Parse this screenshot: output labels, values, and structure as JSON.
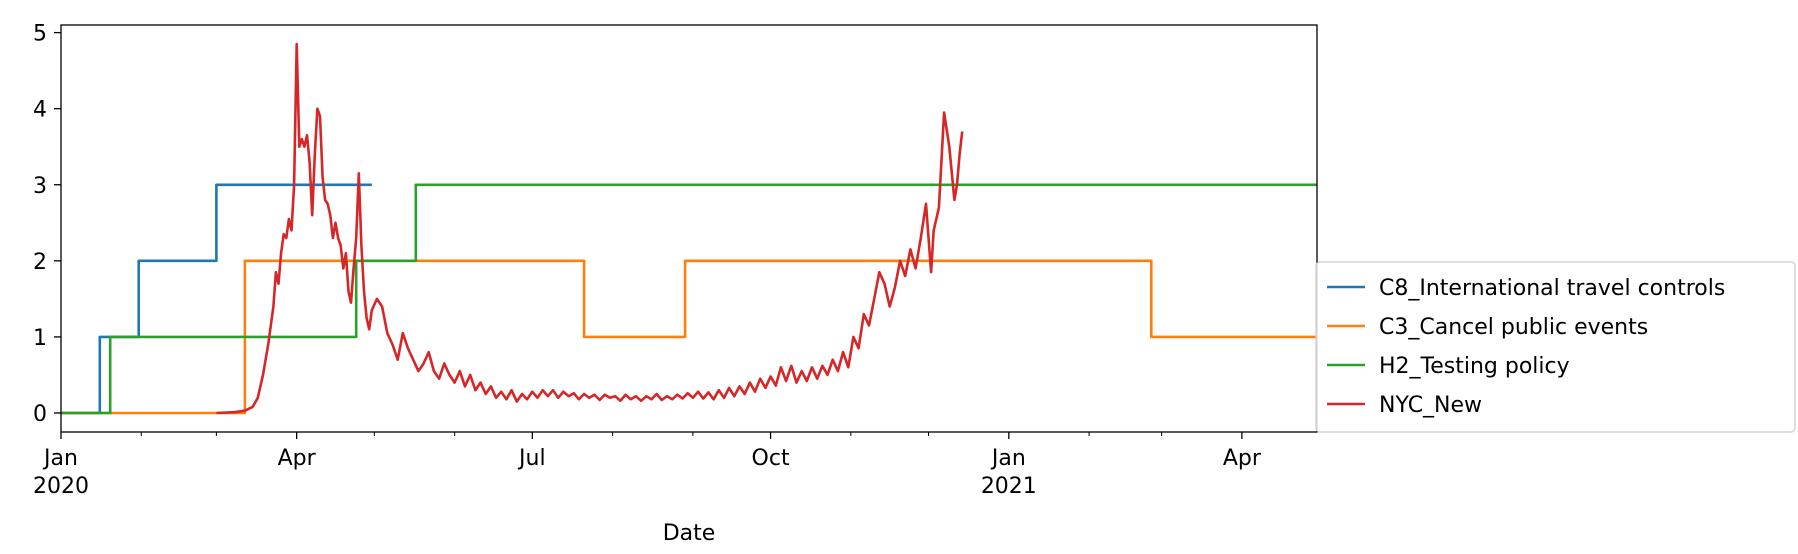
{
  "chart_data": {
    "type": "line",
    "xlabel": "Date",
    "ylabel": "",
    "xlim": [
      "2020-01-01",
      "2021-04-30"
    ],
    "ylim": [
      -0.25,
      5.1
    ],
    "y_ticks": [
      0,
      1,
      2,
      3,
      4,
      5
    ],
    "x_ticks": [
      {
        "date": "2020-01-01",
        "label": "Jan",
        "sublabel": "2020"
      },
      {
        "date": "2020-04-01",
        "label": "Apr",
        "sublabel": ""
      },
      {
        "date": "2020-07-01",
        "label": "Jul",
        "sublabel": ""
      },
      {
        "date": "2020-10-01",
        "label": "Oct",
        "sublabel": ""
      },
      {
        "date": "2021-01-01",
        "label": "Jan",
        "sublabel": "2021"
      },
      {
        "date": "2021-04-01",
        "label": "Apr",
        "sublabel": ""
      }
    ],
    "minor_ticks": [
      "2020-02-01",
      "2020-03-01",
      "2020-05-01",
      "2020-06-01",
      "2020-08-01",
      "2020-09-01",
      "2020-11-01",
      "2020-12-01",
      "2021-02-01",
      "2021-03-01"
    ],
    "grid": false,
    "legend_position": "right",
    "series": [
      {
        "name": "C8_International travel controls",
        "color": "#1f77b4",
        "step": true,
        "points": [
          [
            "2020-01-01",
            0
          ],
          [
            "2020-01-16",
            1
          ],
          [
            "2020-01-31",
            2
          ],
          [
            "2020-03-01",
            3
          ],
          [
            "2020-04-30",
            3
          ]
        ]
      },
      {
        "name": "C3_Cancel public events",
        "color": "#ff7f0e",
        "step": true,
        "points": [
          [
            "2020-01-01",
            0
          ],
          [
            "2020-03-12",
            2
          ],
          [
            "2020-07-21",
            1
          ],
          [
            "2020-08-29",
            2
          ],
          [
            "2021-02-25",
            1
          ],
          [
            "2021-04-30",
            1
          ]
        ]
      },
      {
        "name": "H2_Testing policy",
        "color": "#2ca02c",
        "step": true,
        "points": [
          [
            "2020-01-01",
            0
          ],
          [
            "2020-01-20",
            1
          ],
          [
            "2020-04-24",
            2
          ],
          [
            "2020-05-17",
            3
          ],
          [
            "2021-04-30",
            3
          ]
        ]
      },
      {
        "name": "NYC_New",
        "color": "#d62728",
        "step": false,
        "points": [
          [
            "2020-03-01",
            0
          ],
          [
            "2020-03-08",
            0.01
          ],
          [
            "2020-03-12",
            0.03
          ],
          [
            "2020-03-15",
            0.08
          ],
          [
            "2020-03-17",
            0.2
          ],
          [
            "2020-03-19",
            0.5
          ],
          [
            "2020-03-21",
            0.9
          ],
          [
            "2020-03-23",
            1.4
          ],
          [
            "2020-03-24",
            1.85
          ],
          [
            "2020-03-25",
            1.7
          ],
          [
            "2020-03-26",
            2.1
          ],
          [
            "2020-03-27",
            2.35
          ],
          [
            "2020-03-28",
            2.3
          ],
          [
            "2020-03-29",
            2.55
          ],
          [
            "2020-03-30",
            2.4
          ],
          [
            "2020-03-31",
            3.0
          ],
          [
            "2020-04-01",
            4.85
          ],
          [
            "2020-04-02",
            3.5
          ],
          [
            "2020-04-03",
            3.6
          ],
          [
            "2020-04-04",
            3.5
          ],
          [
            "2020-04-05",
            3.65
          ],
          [
            "2020-04-06",
            3.3
          ],
          [
            "2020-04-07",
            2.6
          ],
          [
            "2020-04-08",
            3.4
          ],
          [
            "2020-04-09",
            4.0
          ],
          [
            "2020-04-10",
            3.9
          ],
          [
            "2020-04-11",
            3.1
          ],
          [
            "2020-04-12",
            2.8
          ],
          [
            "2020-04-13",
            2.75
          ],
          [
            "2020-04-14",
            2.6
          ],
          [
            "2020-04-15",
            2.3
          ],
          [
            "2020-04-16",
            2.5
          ],
          [
            "2020-04-17",
            2.3
          ],
          [
            "2020-04-18",
            2.2
          ],
          [
            "2020-04-19",
            1.9
          ],
          [
            "2020-04-20",
            2.1
          ],
          [
            "2020-04-21",
            1.6
          ],
          [
            "2020-04-22",
            1.45
          ],
          [
            "2020-04-23",
            1.9
          ],
          [
            "2020-04-24",
            2.3
          ],
          [
            "2020-04-25",
            3.15
          ],
          [
            "2020-04-26",
            2.2
          ],
          [
            "2020-04-27",
            1.6
          ],
          [
            "2020-04-28",
            1.25
          ],
          [
            "2020-04-29",
            1.1
          ],
          [
            "2020-04-30",
            1.35
          ],
          [
            "2020-05-02",
            1.5
          ],
          [
            "2020-05-04",
            1.4
          ],
          [
            "2020-05-06",
            1.05
          ],
          [
            "2020-05-08",
            0.9
          ],
          [
            "2020-05-10",
            0.7
          ],
          [
            "2020-05-12",
            1.05
          ],
          [
            "2020-05-14",
            0.85
          ],
          [
            "2020-05-16",
            0.7
          ],
          [
            "2020-05-18",
            0.55
          ],
          [
            "2020-05-20",
            0.65
          ],
          [
            "2020-05-22",
            0.8
          ],
          [
            "2020-05-24",
            0.55
          ],
          [
            "2020-05-26",
            0.45
          ],
          [
            "2020-05-28",
            0.65
          ],
          [
            "2020-05-30",
            0.5
          ],
          [
            "2020-06-01",
            0.4
          ],
          [
            "2020-06-03",
            0.55
          ],
          [
            "2020-06-05",
            0.35
          ],
          [
            "2020-06-07",
            0.5
          ],
          [
            "2020-06-09",
            0.3
          ],
          [
            "2020-06-11",
            0.4
          ],
          [
            "2020-06-13",
            0.25
          ],
          [
            "2020-06-15",
            0.35
          ],
          [
            "2020-06-17",
            0.2
          ],
          [
            "2020-06-19",
            0.28
          ],
          [
            "2020-06-21",
            0.18
          ],
          [
            "2020-06-23",
            0.3
          ],
          [
            "2020-06-25",
            0.15
          ],
          [
            "2020-06-27",
            0.25
          ],
          [
            "2020-06-29",
            0.18
          ],
          [
            "2020-07-01",
            0.28
          ],
          [
            "2020-07-03",
            0.2
          ],
          [
            "2020-07-05",
            0.3
          ],
          [
            "2020-07-07",
            0.22
          ],
          [
            "2020-07-09",
            0.3
          ],
          [
            "2020-07-11",
            0.2
          ],
          [
            "2020-07-13",
            0.28
          ],
          [
            "2020-07-15",
            0.22
          ],
          [
            "2020-07-17",
            0.26
          ],
          [
            "2020-07-19",
            0.18
          ],
          [
            "2020-07-21",
            0.25
          ],
          [
            "2020-07-23",
            0.2
          ],
          [
            "2020-07-25",
            0.24
          ],
          [
            "2020-07-27",
            0.17
          ],
          [
            "2020-07-29",
            0.24
          ],
          [
            "2020-07-31",
            0.2
          ],
          [
            "2020-08-02",
            0.22
          ],
          [
            "2020-08-04",
            0.16
          ],
          [
            "2020-08-06",
            0.24
          ],
          [
            "2020-08-08",
            0.18
          ],
          [
            "2020-08-10",
            0.22
          ],
          [
            "2020-08-12",
            0.16
          ],
          [
            "2020-08-14",
            0.22
          ],
          [
            "2020-08-16",
            0.18
          ],
          [
            "2020-08-18",
            0.25
          ],
          [
            "2020-08-20",
            0.17
          ],
          [
            "2020-08-22",
            0.22
          ],
          [
            "2020-08-24",
            0.18
          ],
          [
            "2020-08-26",
            0.24
          ],
          [
            "2020-08-28",
            0.19
          ],
          [
            "2020-08-30",
            0.26
          ],
          [
            "2020-09-01",
            0.2
          ],
          [
            "2020-09-03",
            0.28
          ],
          [
            "2020-09-05",
            0.19
          ],
          [
            "2020-09-07",
            0.27
          ],
          [
            "2020-09-09",
            0.18
          ],
          [
            "2020-09-11",
            0.3
          ],
          [
            "2020-09-13",
            0.2
          ],
          [
            "2020-09-15",
            0.33
          ],
          [
            "2020-09-17",
            0.22
          ],
          [
            "2020-09-19",
            0.35
          ],
          [
            "2020-09-21",
            0.25
          ],
          [
            "2020-09-23",
            0.4
          ],
          [
            "2020-09-25",
            0.28
          ],
          [
            "2020-09-27",
            0.45
          ],
          [
            "2020-09-29",
            0.33
          ],
          [
            "2020-10-01",
            0.48
          ],
          [
            "2020-10-03",
            0.36
          ],
          [
            "2020-10-05",
            0.6
          ],
          [
            "2020-10-07",
            0.42
          ],
          [
            "2020-10-09",
            0.62
          ],
          [
            "2020-10-11",
            0.4
          ],
          [
            "2020-10-13",
            0.55
          ],
          [
            "2020-10-15",
            0.42
          ],
          [
            "2020-10-17",
            0.6
          ],
          [
            "2020-10-19",
            0.45
          ],
          [
            "2020-10-21",
            0.62
          ],
          [
            "2020-10-23",
            0.5
          ],
          [
            "2020-10-25",
            0.7
          ],
          [
            "2020-10-27",
            0.55
          ],
          [
            "2020-10-29",
            0.8
          ],
          [
            "2020-10-31",
            0.6
          ],
          [
            "2020-11-02",
            1.0
          ],
          [
            "2020-11-04",
            0.85
          ],
          [
            "2020-11-06",
            1.3
          ],
          [
            "2020-11-08",
            1.15
          ],
          [
            "2020-11-10",
            1.5
          ],
          [
            "2020-11-12",
            1.85
          ],
          [
            "2020-11-14",
            1.7
          ],
          [
            "2020-11-16",
            1.4
          ],
          [
            "2020-11-18",
            1.65
          ],
          [
            "2020-11-20",
            2.0
          ],
          [
            "2020-11-22",
            1.8
          ],
          [
            "2020-11-24",
            2.15
          ],
          [
            "2020-11-26",
            1.9
          ],
          [
            "2020-11-28",
            2.3
          ],
          [
            "2020-11-30",
            2.75
          ],
          [
            "2020-12-02",
            1.85
          ],
          [
            "2020-12-03",
            2.4
          ],
          [
            "2020-12-05",
            2.7
          ],
          [
            "2020-12-07",
            3.95
          ],
          [
            "2020-12-09",
            3.5
          ],
          [
            "2020-12-11",
            2.8
          ],
          [
            "2020-12-12",
            3.0
          ],
          [
            "2020-12-13",
            3.4
          ],
          [
            "2020-12-14",
            3.7
          ]
        ]
      }
    ]
  }
}
